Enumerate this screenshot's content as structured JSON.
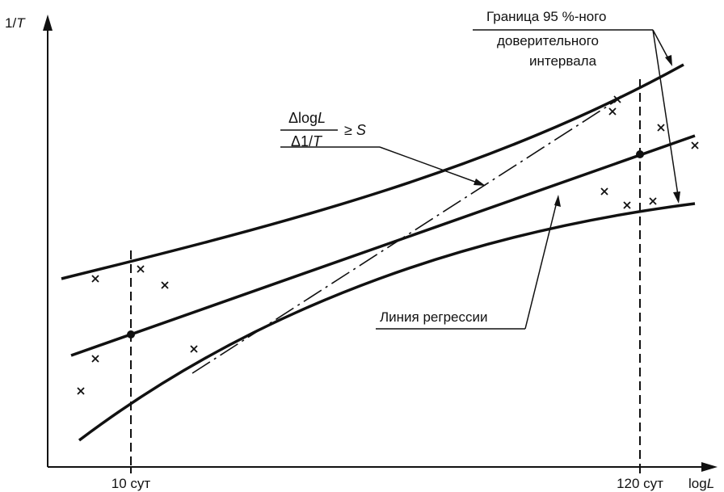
{
  "axes": {
    "y_label_prefix": "1/",
    "y_label_var": "T",
    "x_label_prefix": "log",
    "x_label_var": "L"
  },
  "ticks": {
    "left": "10 сут",
    "right": "120 сут"
  },
  "callouts": {
    "confidence_line1": "Граница 95 %-ного",
    "confidence_line2": "доверительного",
    "confidence_line3": "интервала",
    "regression": "Линия регрессии",
    "slope_num_delta": "Δlog",
    "slope_num_var": "L",
    "slope_den_delta": "Δ1/",
    "slope_den_var": "T",
    "slope_rhs_op": "≥ ",
    "slope_rhs_var": "S"
  },
  "colors": {
    "ink": "#111111",
    "background": "#ffffff"
  }
}
